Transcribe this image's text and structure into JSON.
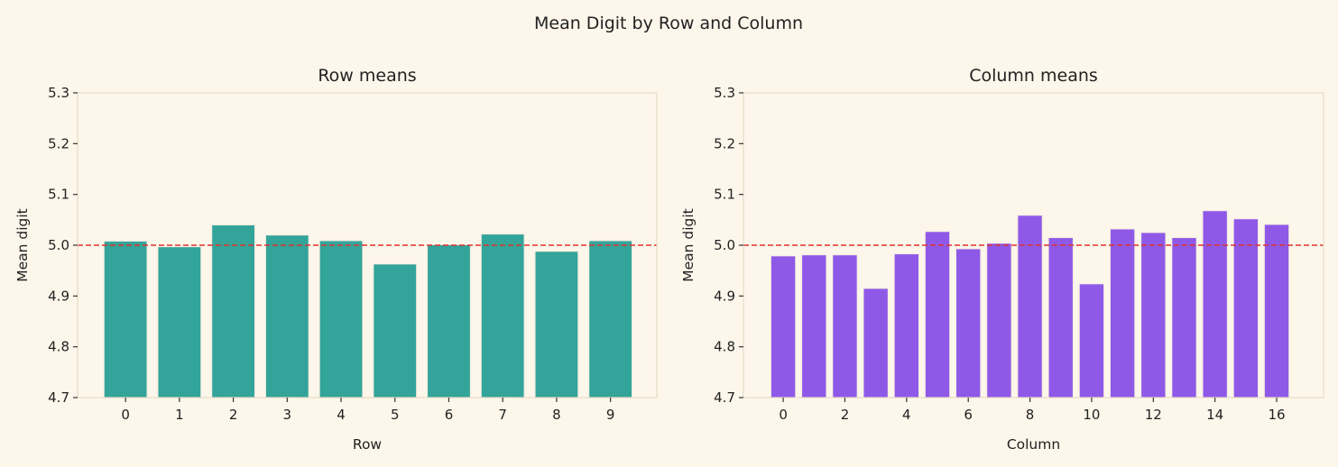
{
  "suptitle": "Mean Digit by Row and Column",
  "chart_data": [
    {
      "type": "bar",
      "title": "Row means",
      "xlabel": "Row",
      "ylabel": "Mean digit",
      "ylim": [
        4.7,
        5.3
      ],
      "yticks": [
        "4.7",
        "4.8",
        "4.9",
        "5.0",
        "5.1",
        "5.2",
        "5.3"
      ],
      "categories": [
        0,
        1,
        2,
        3,
        4,
        5,
        6,
        7,
        8,
        9
      ],
      "xticks": [
        "0",
        "1",
        "2",
        "3",
        "4",
        "5",
        "6",
        "7",
        "8",
        "9"
      ],
      "values": [
        5.008,
        4.997,
        5.04,
        5.02,
        5.009,
        4.963,
        5.001,
        5.022,
        4.988,
        5.009
      ],
      "reference_line": 5.0,
      "bar_color": "#33a499",
      "reference_color": "#e03030",
      "grid": false
    },
    {
      "type": "bar",
      "title": "Column means",
      "xlabel": "Column",
      "ylabel": "Mean digit",
      "ylim": [
        4.7,
        5.3
      ],
      "yticks": [
        "4.7",
        "4.8",
        "4.9",
        "5.0",
        "5.1",
        "5.2",
        "5.3"
      ],
      "categories": [
        0,
        1,
        2,
        3,
        4,
        5,
        6,
        7,
        8,
        9,
        10,
        11,
        12,
        13,
        14,
        15,
        16
      ],
      "xticks": [
        "0",
        "2",
        "4",
        "6",
        "8",
        "10",
        "12",
        "14",
        "16"
      ],
      "values": [
        4.979,
        4.981,
        4.981,
        4.915,
        4.983,
        5.027,
        4.993,
        5.004,
        5.059,
        5.015,
        4.924,
        5.032,
        5.025,
        5.015,
        5.068,
        5.052,
        5.041
      ],
      "reference_line": 5.0,
      "bar_color": "#8f59e8",
      "reference_color": "#e03030",
      "grid": false
    }
  ]
}
